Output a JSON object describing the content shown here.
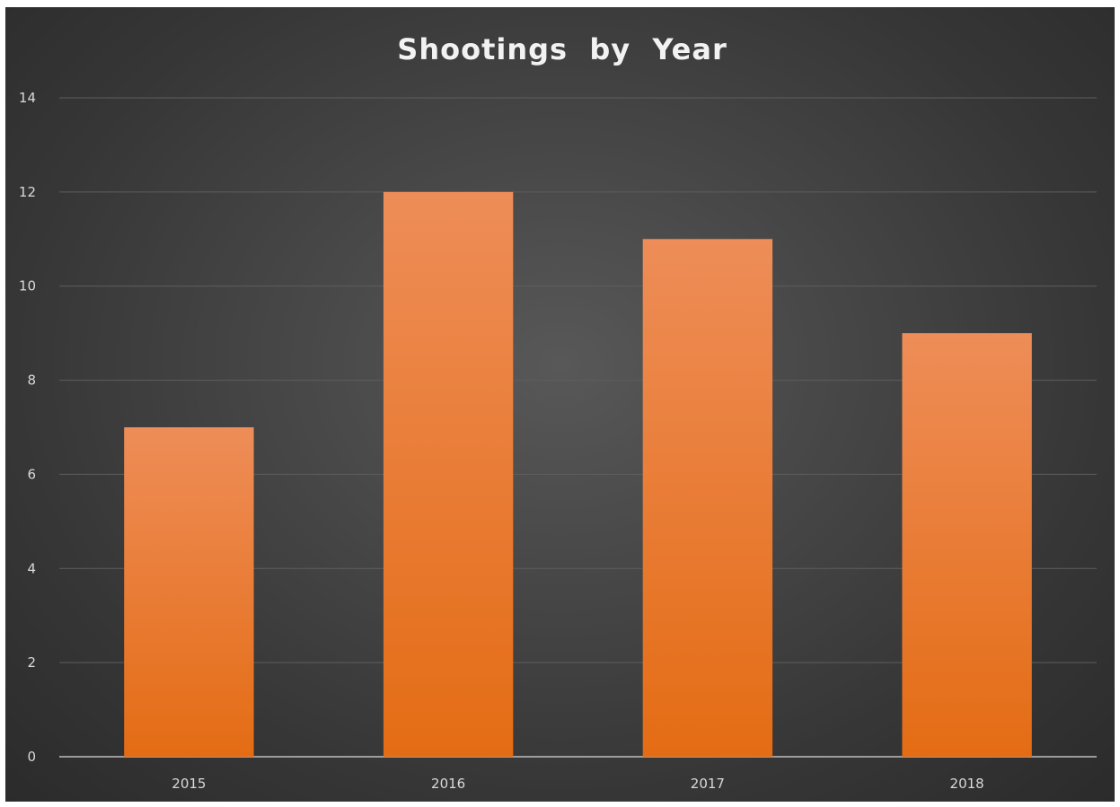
{
  "chart_data": {
    "type": "bar",
    "title": "Shootings  by  Year",
    "xlabel": "",
    "ylabel": "",
    "categories": [
      "2015",
      "2016",
      "2017",
      "2018"
    ],
    "values": [
      7,
      12,
      11,
      9
    ],
    "ylim": [
      0,
      14
    ],
    "yticks": [
      "0",
      "2",
      "4",
      "6",
      "8",
      "10",
      "12",
      "14"
    ],
    "grid": true,
    "legend": "none"
  },
  "colors": {
    "bar_top": "#ee8d58",
    "bar_bottom": "#e46c14",
    "background": "#404040"
  }
}
